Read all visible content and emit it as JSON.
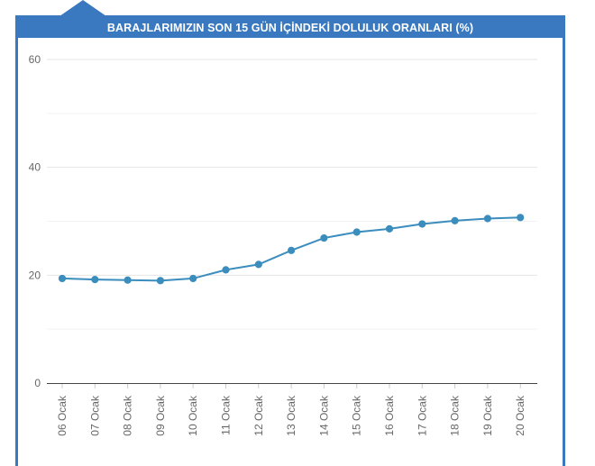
{
  "chart_data": {
    "type": "line",
    "title": "BARAJLARIMIZIN SON 15 GÜN İÇİNDEKİ DOLULUK ORANLARI (%)",
    "categories": [
      "06 Ocak",
      "07 Ocak",
      "08 Ocak",
      "09 Ocak",
      "10 Ocak",
      "11 Ocak",
      "12 Ocak",
      "13 Ocak",
      "14 Ocak",
      "15 Ocak",
      "16 Ocak",
      "17 Ocak",
      "18 Ocak",
      "19 Ocak",
      "20 Ocak"
    ],
    "series": [
      {
        "values": [
          19.4,
          19.2,
          19.1,
          19.0,
          19.4,
          21.0,
          22.0,
          24.6,
          26.9,
          28.0,
          28.6,
          29.5,
          30.1,
          30.5,
          30.7
        ]
      }
    ],
    "yticks": [
      0,
      20,
      40,
      60
    ],
    "ylim": [
      0,
      60
    ],
    "grid": true,
    "line_color": "#3b8dbd",
    "accent_color": "#3a78bf"
  }
}
